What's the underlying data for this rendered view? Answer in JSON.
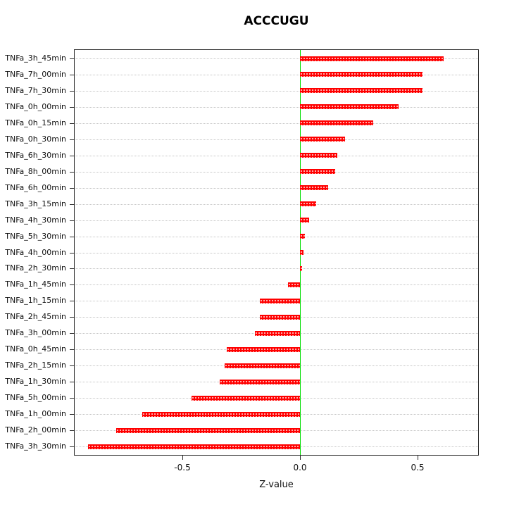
{
  "chart_data": {
    "type": "bar",
    "orientation": "horizontal",
    "title": "ACCCUGU",
    "xlabel": "Z-value",
    "xlim": [
      -0.96,
      0.76
    ],
    "xticks": [
      {
        "value": -0.5,
        "label": "-0.5"
      },
      {
        "value": 0.0,
        "label": "0.0"
      },
      {
        "value": 0.5,
        "label": "0.5"
      }
    ],
    "grid": true,
    "legend": false,
    "bar_color": "#ff0000",
    "zero_line_color": "#00dd00",
    "categories": [
      "TNFa_3h_45min",
      "TNFa_7h_00min",
      "TNFa_7h_30min",
      "TNFa_0h_00min",
      "TNFa_0h_15min",
      "TNFa_0h_30min",
      "TNFa_6h_30min",
      "TNFa_8h_00min",
      "TNFa_6h_00min",
      "TNFa_3h_15min",
      "TNFa_4h_30min",
      "TNFa_5h_30min",
      "TNFa_4h_00min",
      "TNFa_2h_30min",
      "TNFa_1h_45min",
      "TNFa_1h_15min",
      "TNFa_2h_45min",
      "TNFa_3h_00min",
      "TNFa_0h_45min",
      "TNFa_2h_15min",
      "TNFa_1h_30min",
      "TNFa_5h_00min",
      "TNFa_1h_00min",
      "TNFa_2h_00min",
      "TNFa_3h_30min"
    ],
    "values": [
      0.61,
      0.52,
      0.52,
      0.42,
      0.31,
      0.19,
      0.16,
      0.15,
      0.12,
      0.07,
      0.04,
      0.02,
      0.015,
      0.01,
      -0.05,
      -0.17,
      -0.17,
      -0.19,
      -0.31,
      -0.32,
      -0.34,
      -0.46,
      -0.67,
      -0.78,
      -0.9
    ]
  }
}
